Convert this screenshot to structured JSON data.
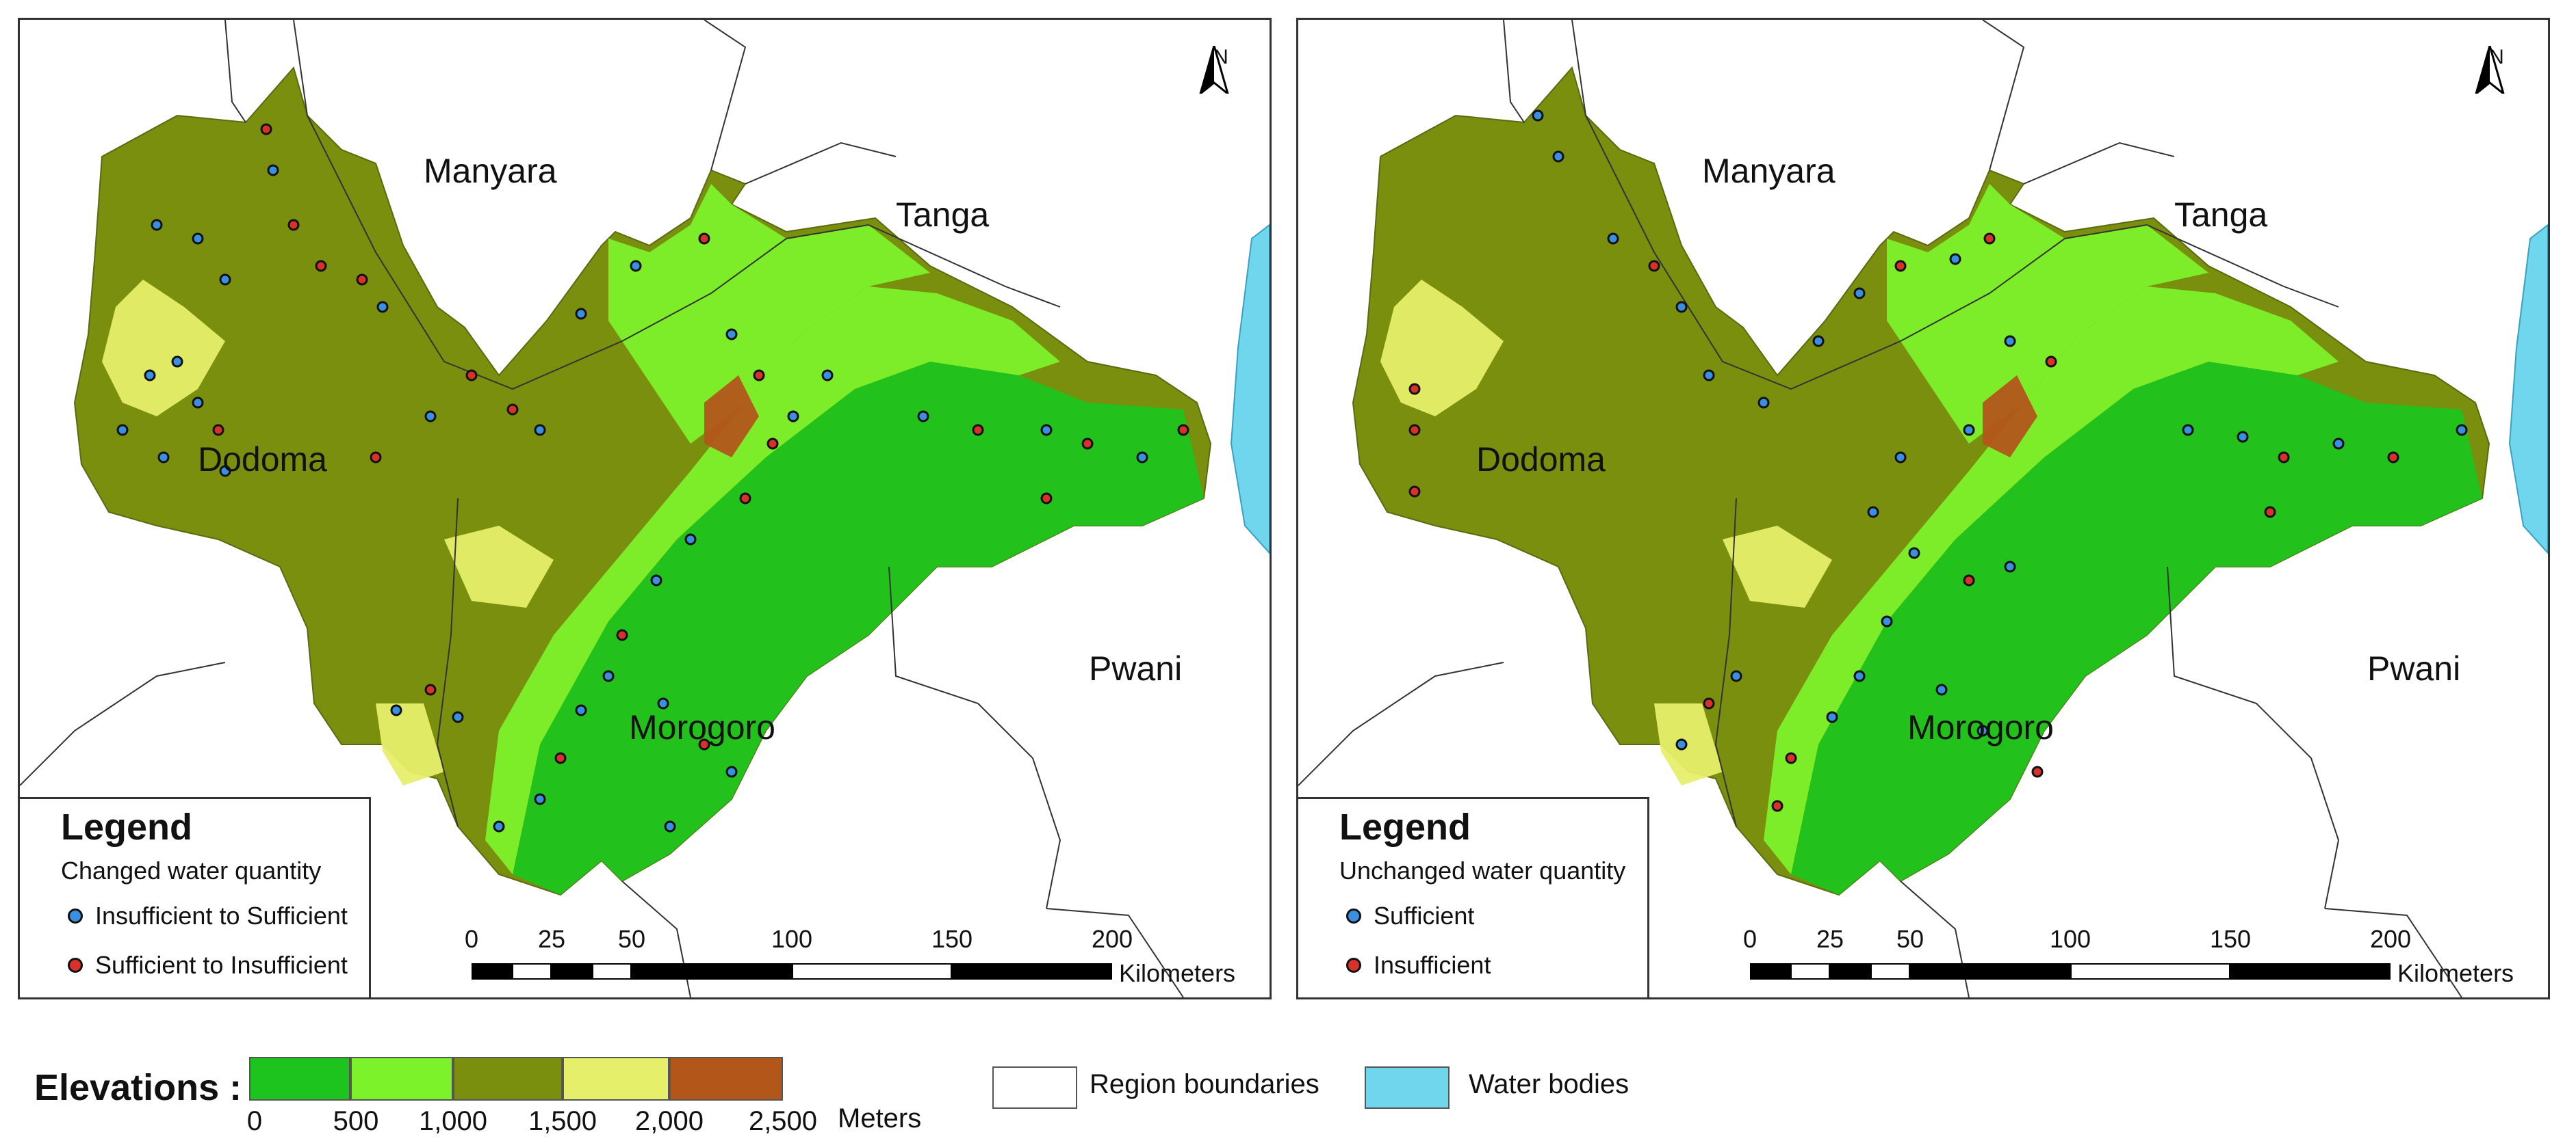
{
  "colors": {
    "elev_0_500": "#1ec41e",
    "elev_500_1000": "#7cf22a",
    "elev_1000_1500": "#7a8f0e",
    "elev_1500_2000": "#e6ef6a",
    "elev_2000_2500": "#b3561a",
    "water": "#6fd6ee",
    "dot_blue": "#3b8fe0",
    "dot_red": "#d8312c"
  },
  "north_letter": "N",
  "regions": [
    "Manyara",
    "Tanga",
    "Dodoma",
    "Pwani",
    "Morogoro"
  ],
  "maps": [
    {
      "legend_title": "Legend",
      "legend_subtitle": "Changed water quantity",
      "legend_items": [
        {
          "label": "Insufficient to Sufficient",
          "color": "blue"
        },
        {
          "label": "Sufficient to Insufficient",
          "color": "red"
        }
      ]
    },
    {
      "legend_title": "Legend",
      "legend_subtitle": "Unchanged water quantity",
      "legend_items": [
        {
          "label": "Sufficient",
          "color": "blue"
        },
        {
          "label": "Insufficient",
          "color": "red"
        }
      ]
    }
  ],
  "scale": {
    "ticks": [
      "0",
      "25",
      "50",
      "100",
      "150",
      "200"
    ],
    "unit": "Kilometers"
  },
  "elevation_legend": {
    "label": "Elevations :",
    "ticks": [
      "0",
      "500",
      "1,000",
      "1,500",
      "2,000",
      "2,500"
    ],
    "unit": "Meters"
  },
  "key_items": {
    "region_boundaries": "Region boundaries",
    "water_bodies": "Water bodies"
  }
}
